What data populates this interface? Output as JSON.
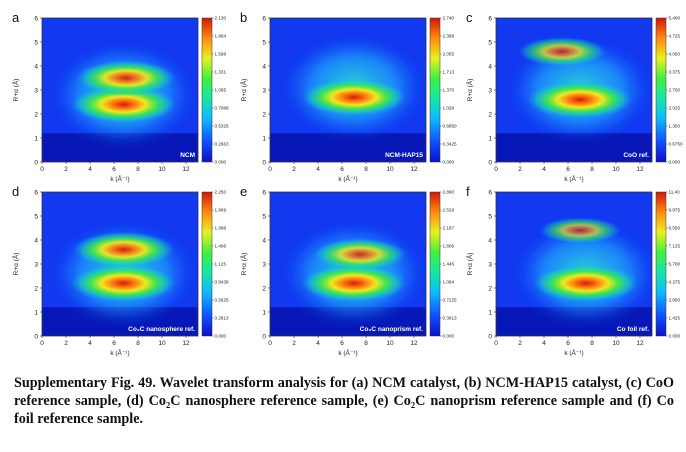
{
  "caption": "Supplementary Fig. 49. Wavelet transform analysis for (a) NCM catalyst, (b) NCM-HAP15 catalyst, (c) CoO reference sample, (d) Co₂C nanosphere reference sample, (e) Co₂C nanoprism reference sample and (f) Co foil reference sample.",
  "colors": {
    "low": "#0a22d8",
    "mid": "#18e07a",
    "high": "#d81a0a"
  },
  "chart_data": [
    {
      "type": "heatmap",
      "letter": "a",
      "tag": "NCM",
      "xlabel": "k (Å⁻¹)",
      "ylabel": "R+α (Å)",
      "xlim": [
        0,
        13
      ],
      "ylim": [
        0,
        6
      ],
      "xticks": [
        "0",
        "2",
        "4",
        "6",
        "8",
        "10",
        "12"
      ],
      "yticks": [
        "0",
        "1",
        "2",
        "3",
        "4",
        "5",
        "6"
      ],
      "colorbar_ticks": [
        "0.000",
        "0.2663",
        "0.5325",
        "0.7988",
        "1.065",
        "1.331",
        "1.598",
        "1.864",
        "2.130"
      ],
      "peaks": [
        {
          "k": 6.8,
          "r": 2.4,
          "value": 2.13
        },
        {
          "k": 7.0,
          "r": 3.5,
          "value": 1.8
        }
      ]
    },
    {
      "type": "heatmap",
      "letter": "b",
      "tag": "NCM-HAP15",
      "xlabel": "k (Å⁻¹)",
      "ylabel": "R+α (Å)",
      "xlim": [
        0,
        13
      ],
      "ylim": [
        0,
        6
      ],
      "xticks": [
        "0",
        "2",
        "4",
        "6",
        "8",
        "10",
        "12"
      ],
      "yticks": [
        "0",
        "1",
        "2",
        "3",
        "4",
        "5",
        "6"
      ],
      "colorbar_ticks": [
        "0.000",
        "0.3425",
        "0.6850",
        "1.028",
        "1.370",
        "1.713",
        "2.055",
        "2.398",
        "2.740"
      ],
      "peaks": [
        {
          "k": 7.0,
          "r": 2.7,
          "value": 2.74
        }
      ]
    },
    {
      "type": "heatmap",
      "letter": "c",
      "tag": "CoO ref.",
      "xlabel": "k (Å⁻¹)",
      "ylabel": "R+α (Å)",
      "xlim": [
        0,
        13
      ],
      "ylim": [
        0,
        6
      ],
      "xticks": [
        "0",
        "2",
        "4",
        "6",
        "8",
        "10",
        "12"
      ],
      "yticks": [
        "0",
        "1",
        "2",
        "3",
        "4",
        "5",
        "6"
      ],
      "colorbar_ticks": [
        "0.000",
        "0.6750",
        "1.350",
        "2.025",
        "2.700",
        "3.375",
        "4.050",
        "4.725",
        "5.400"
      ],
      "peaks": [
        {
          "k": 7.0,
          "r": 2.6,
          "value": 5.4
        },
        {
          "k": 5.5,
          "r": 4.6,
          "value": 2.8
        }
      ]
    },
    {
      "type": "heatmap",
      "letter": "d",
      "tag": "Co₂C nanosphere ref.",
      "xlabel": "k (Å⁻¹)",
      "ylabel": "R+α (Å)",
      "xlim": [
        0,
        13
      ],
      "ylim": [
        0,
        6
      ],
      "xticks": [
        "0",
        "2",
        "4",
        "6",
        "8",
        "10",
        "12"
      ],
      "yticks": [
        "0",
        "1",
        "2",
        "3",
        "4",
        "5",
        "6"
      ],
      "colorbar_ticks": [
        "0.000",
        "0.2813",
        "0.5625",
        "0.8438",
        "1.125",
        "1.406",
        "1.688",
        "1.969",
        "2.250"
      ],
      "peaks": [
        {
          "k": 6.8,
          "r": 2.2,
          "value": 2.25
        },
        {
          "k": 6.8,
          "r": 3.6,
          "value": 2.0
        }
      ]
    },
    {
      "type": "heatmap",
      "letter": "e",
      "tag": "Co₂C nanoprism ref.",
      "xlabel": "k (Å⁻¹)",
      "ylabel": "R+α (Å)",
      "xlim": [
        0,
        13
      ],
      "ylim": [
        0,
        6
      ],
      "xticks": [
        "0",
        "2",
        "4",
        "6",
        "8",
        "10",
        "12"
      ],
      "yticks": [
        "0",
        "1",
        "2",
        "3",
        "4",
        "5",
        "6"
      ],
      "colorbar_ticks": [
        "0.000",
        "0.3613",
        "0.7225",
        "1.084",
        "1.445",
        "1.806",
        "2.167",
        "2.529",
        "2.890"
      ],
      "peaks": [
        {
          "k": 7.0,
          "r": 2.2,
          "value": 2.89
        },
        {
          "k": 7.5,
          "r": 3.4,
          "value": 1.9
        }
      ]
    },
    {
      "type": "heatmap",
      "letter": "f",
      "tag": "Co foil ref.",
      "xlabel": "k (Å⁻¹)",
      "ylabel": "R+α (Å)",
      "xlim": [
        0,
        13
      ],
      "ylim": [
        0,
        6
      ],
      "xticks": [
        "0",
        "2",
        "4",
        "6",
        "8",
        "10",
        "12"
      ],
      "yticks": [
        "0",
        "1",
        "2",
        "3",
        "4",
        "5",
        "6"
      ],
      "colorbar_ticks": [
        "0.000",
        "1.425",
        "2.850",
        "4.275",
        "5.700",
        "7.125",
        "8.550",
        "9.975",
        "11.40"
      ],
      "peaks": [
        {
          "k": 7.5,
          "r": 2.2,
          "value": 11.4
        },
        {
          "k": 7.0,
          "r": 4.4,
          "value": 4.0
        }
      ]
    }
  ]
}
